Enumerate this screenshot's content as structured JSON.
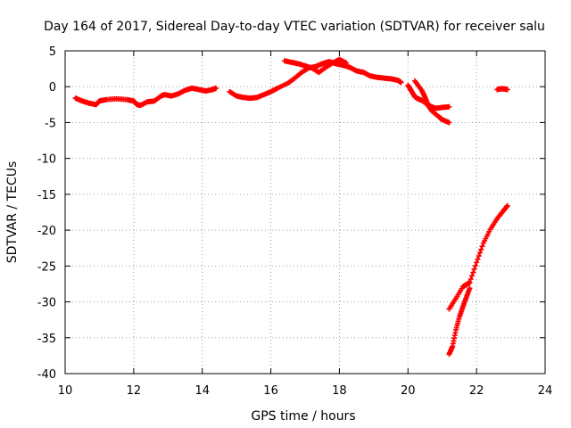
{
  "chart_data": {
    "type": "scatter",
    "title": "Day 164 of 2017, Sidereal Day-to-day VTEC variation (SDTVAR) for receiver salu",
    "xlabel": "GPS time / hours",
    "ylabel": "SDTVAR / TECUs",
    "xlim": [
      10,
      24
    ],
    "ylim": [
      -40,
      5
    ],
    "xticks": [
      10,
      12,
      14,
      16,
      18,
      20,
      22,
      24
    ],
    "yticks": [
      5,
      0,
      -5,
      -10,
      -15,
      -20,
      -25,
      -30,
      -35,
      -40
    ],
    "grid": true,
    "marker": "+",
    "color": "#ff0000",
    "series": [
      {
        "name": "segment 1",
        "points": [
          [
            10.3,
            -1.6
          ],
          [
            10.5,
            -2.0
          ],
          [
            10.7,
            -2.3
          ],
          [
            10.9,
            -2.5
          ],
          [
            11.0,
            -2.0
          ],
          [
            11.2,
            -1.8
          ],
          [
            11.5,
            -1.7
          ],
          [
            11.8,
            -1.8
          ],
          [
            12.0,
            -2.0
          ],
          [
            12.1,
            -2.5
          ],
          [
            12.2,
            -2.6
          ],
          [
            12.4,
            -2.1
          ],
          [
            12.6,
            -2.0
          ],
          [
            12.8,
            -1.3
          ],
          [
            12.9,
            -1.1
          ],
          [
            13.1,
            -1.3
          ],
          [
            13.3,
            -1.0
          ],
          [
            13.5,
            -0.5
          ],
          [
            13.7,
            -0.2
          ],
          [
            13.9,
            -0.4
          ],
          [
            14.1,
            -0.6
          ],
          [
            14.3,
            -0.4
          ],
          [
            14.4,
            -0.2
          ]
        ]
      },
      {
        "name": "segment 2",
        "points": [
          [
            14.8,
            -0.7
          ],
          [
            15.0,
            -1.3
          ],
          [
            15.2,
            -1.5
          ],
          [
            15.4,
            -1.6
          ],
          [
            15.6,
            -1.5
          ],
          [
            15.8,
            -1.1
          ],
          [
            16.0,
            -0.7
          ],
          [
            16.2,
            -0.2
          ],
          [
            16.5,
            0.5
          ],
          [
            16.7,
            1.2
          ],
          [
            16.9,
            2.0
          ],
          [
            17.1,
            2.6
          ],
          [
            17.3,
            2.8
          ],
          [
            17.5,
            3.2
          ],
          [
            17.7,
            3.5
          ],
          [
            17.9,
            3.2
          ],
          [
            18.1,
            3.0
          ],
          [
            18.3,
            2.7
          ],
          [
            18.5,
            2.2
          ],
          [
            18.7,
            2.0
          ],
          [
            18.9,
            1.5
          ],
          [
            19.1,
            1.3
          ],
          [
            19.3,
            1.2
          ],
          [
            19.5,
            1.1
          ],
          [
            19.7,
            0.9
          ],
          [
            19.8,
            0.6
          ]
        ]
      },
      {
        "name": "segment 3",
        "points": [
          [
            16.4,
            3.6
          ],
          [
            16.6,
            3.4
          ],
          [
            16.8,
            3.2
          ],
          [
            17.0,
            2.9
          ],
          [
            17.2,
            2.6
          ],
          [
            17.4,
            2.0
          ],
          [
            17.6,
            2.7
          ],
          [
            17.8,
            3.3
          ],
          [
            18.0,
            3.8
          ],
          [
            18.2,
            3.3
          ]
        ]
      },
      {
        "name": "segment 4",
        "points": [
          [
            20.0,
            0.2
          ],
          [
            20.1,
            -0.6
          ],
          [
            20.2,
            -1.4
          ],
          [
            20.3,
            -1.7
          ],
          [
            20.4,
            -1.9
          ],
          [
            20.6,
            -2.6
          ],
          [
            20.8,
            -3.0
          ],
          [
            21.0,
            -2.9
          ],
          [
            21.2,
            -2.8
          ]
        ]
      },
      {
        "name": "segment 5",
        "points": [
          [
            20.2,
            0.8
          ],
          [
            20.4,
            -0.5
          ],
          [
            20.5,
            -1.5
          ],
          [
            20.6,
            -2.7
          ],
          [
            20.7,
            -3.4
          ],
          [
            20.9,
            -4.2
          ],
          [
            21.0,
            -4.6
          ],
          [
            21.2,
            -5.0
          ]
        ]
      },
      {
        "name": "segment 6",
        "points": [
          [
            22.6,
            -0.4
          ],
          [
            22.7,
            -0.3
          ],
          [
            22.8,
            -0.3
          ],
          [
            22.9,
            -0.4
          ]
        ]
      },
      {
        "name": "segment 7",
        "points": [
          [
            21.2,
            -31.0
          ],
          [
            21.4,
            -29.5
          ],
          [
            21.6,
            -27.9
          ],
          [
            21.7,
            -27.6
          ],
          [
            21.8,
            -27.3
          ],
          [
            22.0,
            -24.5
          ],
          [
            22.2,
            -21.8
          ],
          [
            22.4,
            -19.9
          ],
          [
            22.6,
            -18.4
          ],
          [
            22.8,
            -17.2
          ],
          [
            22.9,
            -16.6
          ]
        ]
      },
      {
        "name": "segment 8",
        "points": [
          [
            21.2,
            -37.3
          ],
          [
            21.3,
            -36.2
          ],
          [
            21.4,
            -33.9
          ],
          [
            21.5,
            -32.1
          ],
          [
            21.6,
            -30.7
          ],
          [
            21.7,
            -29.4
          ],
          [
            21.8,
            -28.1
          ]
        ]
      }
    ]
  }
}
